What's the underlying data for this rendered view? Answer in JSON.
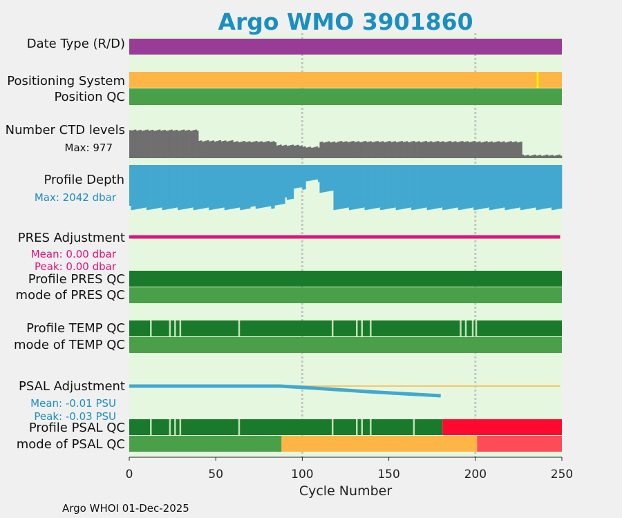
{
  "chart_data": {
    "type": "timeline",
    "title": "Argo WMO 3901860",
    "xlabel": "Cycle Number",
    "xlim": [
      0,
      250
    ],
    "xticks": [
      0,
      50,
      100,
      150,
      200,
      250
    ],
    "gridlines_x": [
      100,
      200
    ],
    "footer": "Argo WHOI 01-Dec-2025",
    "colors": {
      "background": "#e5f8df",
      "purple": "#993c97",
      "orange": "#fdb545",
      "yellow": "#fff200",
      "green": "#49a049",
      "darkgreen": "#197a2b",
      "lightgreen": "#c3e0b4",
      "gray": "#6e6e6e",
      "blue": "#42a8cf",
      "magenta": "#e0117c",
      "red": "#ff0a2e",
      "lightred": "#ff4b58",
      "cyan_text": "#1b8fc0"
    },
    "labels": {
      "date_type": "Date Type (R/D)",
      "positioning_system": "Positioning System",
      "position_qc": "Position QC",
      "ctd_levels": "Number CTD levels",
      "ctd_max": "Max: 977",
      "profile_depth": "Profile Depth",
      "depth_max": "Max: 2042 dbar",
      "pres_adjustment": "PRES Adjustment",
      "pres_mean": "Mean: 0.00 dbar",
      "pres_peak": "Peak: 0.00 dbar",
      "profile_pres_qc": "Profile PRES QC",
      "mode_pres_qc": "mode of PRES QC",
      "profile_temp_qc": "Profile TEMP QC",
      "mode_temp_qc": "mode of TEMP QC",
      "psal_adjustment": "PSAL Adjustment",
      "psal_mean": "Mean: -0.01 PSU",
      "psal_peak": "Peak: -0.03 PSU",
      "profile_psal_qc": "Profile PSAL QC",
      "mode_psal_qc": "mode of PSAL QC"
    },
    "date_type": {
      "color": "purple",
      "cycle_range": [
        0,
        250
      ]
    },
    "positioning_system": {
      "color": "orange",
      "cycle_range": [
        0,
        250
      ],
      "marker_cycle": 236,
      "marker_color": "yellow"
    },
    "position_qc": {
      "color": "green",
      "cycle_range": [
        0,
        250
      ]
    },
    "ctd_levels": {
      "max": 977,
      "segments": [
        {
          "from": 0,
          "to": 1,
          "value": 780
        },
        {
          "from": 1,
          "to": 40,
          "value": 760
        },
        {
          "from": 40,
          "to": 60,
          "value": 470
        },
        {
          "from": 60,
          "to": 85,
          "value": 450
        },
        {
          "from": 85,
          "to": 100,
          "value": 350
        },
        {
          "from": 100,
          "to": 110,
          "value": 300
        },
        {
          "from": 110,
          "to": 120,
          "value": 440
        },
        {
          "from": 120,
          "to": 150,
          "value": 450
        },
        {
          "from": 150,
          "to": 200,
          "value": 450
        },
        {
          "from": 200,
          "to": 227,
          "value": 445
        },
        {
          "from": 227,
          "to": 250,
          "value": 80
        }
      ]
    },
    "profile_depth": {
      "max_dbar": 2042,
      "segments": [
        {
          "from": 0,
          "to": 1,
          "value": 1880
        },
        {
          "from": 1,
          "to": 70,
          "value": 1960
        },
        {
          "from": 70,
          "to": 84,
          "value": 1900
        },
        {
          "from": 84,
          "to": 90,
          "value": 1780
        },
        {
          "from": 90,
          "to": 95,
          "value": 1500
        },
        {
          "from": 95,
          "to": 102,
          "value": 1050
        },
        {
          "from": 102,
          "to": 110,
          "value": 700
        },
        {
          "from": 110,
          "to": 118,
          "value": 1200
        },
        {
          "from": 118,
          "to": 250,
          "value": 1960
        }
      ]
    },
    "pres_adjustment": {
      "mean_dbar": 0.0,
      "peak_dbar": 0.0,
      "cycle_range": [
        0,
        249
      ]
    },
    "profile_pres_qc": {
      "color": "darkgreen",
      "cycle_range": [
        0,
        250
      ]
    },
    "mode_pres_qc": {
      "color": "green",
      "cycle_range": [
        0,
        250
      ]
    },
    "profile_temp_qc": {
      "color": "darkgreen",
      "gaps": [
        12,
        23,
        26,
        29,
        63,
        117,
        131,
        134,
        139,
        191,
        194,
        198,
        200
      ],
      "gap_color": "lightgreen"
    },
    "mode_temp_qc": {
      "color": "green",
      "cycle_range": [
        0,
        250
      ]
    },
    "psal_adjustment": {
      "mean_psu": -0.01,
      "peak_psu": -0.03,
      "zero_line_color": "orange",
      "x": [
        0,
        87,
        100,
        120,
        140,
        160,
        180
      ],
      "y": [
        0.0,
        0.0,
        -0.004,
        -0.011,
        -0.018,
        -0.024,
        -0.03
      ]
    },
    "profile_psal_qc": {
      "segments": [
        {
          "from": 0,
          "to": 181,
          "color": "darkgreen"
        },
        {
          "from": 181,
          "to": 250,
          "color": "red"
        }
      ],
      "gaps": [
        12,
        23,
        26,
        29,
        63,
        117,
        131,
        134,
        139,
        164
      ],
      "gap_color": "lightgreen"
    },
    "mode_psal_qc": {
      "segments": [
        {
          "from": 0,
          "to": 88,
          "color": "green"
        },
        {
          "from": 88,
          "to": 201,
          "color": "orange"
        },
        {
          "from": 201,
          "to": 250,
          "color": "lightred"
        }
      ]
    }
  }
}
